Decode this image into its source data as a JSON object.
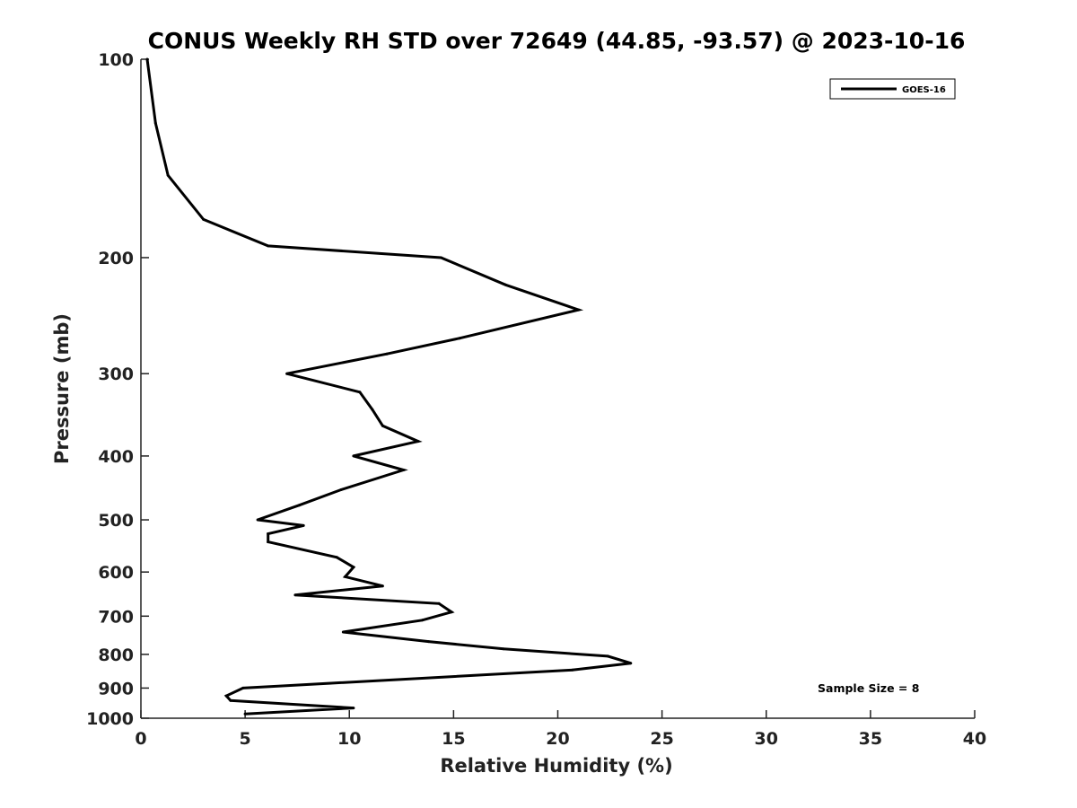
{
  "chart_data": {
    "type": "line",
    "title": "CONUS Weekly RH STD over 72649 (44.85, -93.57) @ 2023-10-16",
    "xlabel": "Relative Humidity (%)",
    "ylabel": "Pressure (mb)",
    "xlim": [
      0,
      40
    ],
    "ylim": [
      100,
      1000
    ],
    "y_scale": "log",
    "y_reversed": true,
    "x_ticks": [
      0,
      5,
      10,
      15,
      20,
      25,
      30,
      35,
      40
    ],
    "y_ticks": [
      100,
      200,
      300,
      400,
      500,
      600,
      700,
      800,
      900,
      1000
    ],
    "grid": false,
    "legend_position": "top-right",
    "annotation": "Sample Size = 8",
    "series": [
      {
        "name": "GOES-16",
        "color": "#000000",
        "points": [
          [
            0.3,
            100
          ],
          [
            0.7,
            125
          ],
          [
            1.3,
            150
          ],
          [
            3.0,
            175
          ],
          [
            6.1,
            192
          ],
          [
            14.4,
            200
          ],
          [
            17.5,
            220
          ],
          [
            21.0,
            240
          ],
          [
            15.3,
            265
          ],
          [
            11.8,
            280
          ],
          [
            7.0,
            300
          ],
          [
            10.5,
            320
          ],
          [
            11.1,
            340
          ],
          [
            11.6,
            360
          ],
          [
            13.3,
            380
          ],
          [
            10.2,
            400
          ],
          [
            12.6,
            420
          ],
          [
            9.6,
            450
          ],
          [
            7.6,
            475
          ],
          [
            5.6,
            500
          ],
          [
            7.8,
            510
          ],
          [
            6.1,
            525
          ],
          [
            6.1,
            540
          ],
          [
            9.4,
            570
          ],
          [
            10.2,
            590
          ],
          [
            9.8,
            610
          ],
          [
            11.6,
            630
          ],
          [
            7.4,
            650
          ],
          [
            14.3,
            670
          ],
          [
            14.9,
            690
          ],
          [
            13.5,
            710
          ],
          [
            9.7,
            740
          ],
          [
            13.8,
            765
          ],
          [
            17.4,
            785
          ],
          [
            22.4,
            805
          ],
          [
            23.5,
            825
          ],
          [
            20.7,
            845
          ],
          [
            4.9,
            900
          ],
          [
            4.1,
            925
          ],
          [
            4.3,
            940
          ],
          [
            10.2,
            965
          ],
          [
            5.0,
            985
          ]
        ]
      }
    ]
  }
}
